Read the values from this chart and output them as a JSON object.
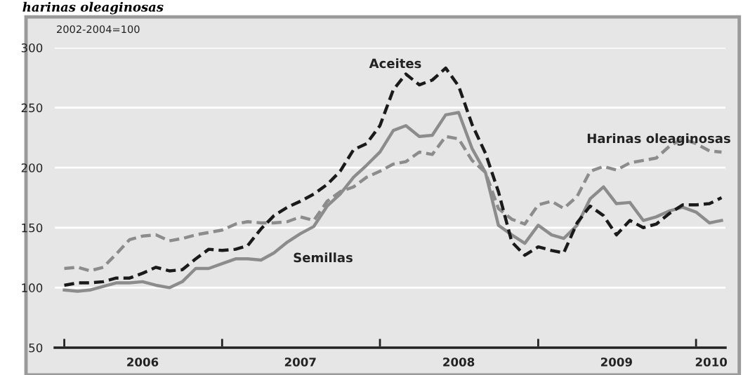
{
  "chart_data": {
    "type": "line",
    "title": "harinas oleaginosas",
    "ylabel": "2002-2004=100",
    "x": [
      "2006-01",
      "2006-02",
      "2006-03",
      "2006-04",
      "2006-05",
      "2006-06",
      "2006-07",
      "2006-08",
      "2006-09",
      "2006-10",
      "2006-11",
      "2006-12",
      "2007-01",
      "2007-02",
      "2007-03",
      "2007-04",
      "2007-05",
      "2007-06",
      "2007-07",
      "2007-08",
      "2007-09",
      "2007-10",
      "2007-11",
      "2007-12",
      "2008-01",
      "2008-02",
      "2008-03",
      "2008-04",
      "2008-05",
      "2008-06",
      "2008-07",
      "2008-08",
      "2008-09",
      "2008-10",
      "2008-11",
      "2008-12",
      "2009-01",
      "2009-02",
      "2009-03",
      "2009-04",
      "2009-05",
      "2009-06",
      "2009-07",
      "2009-08",
      "2009-09",
      "2009-10",
      "2009-11",
      "2009-12",
      "2010-01",
      "2010-02",
      "2010-03"
    ],
    "series": [
      {
        "name": "Aceites",
        "color": "#1a1a1a",
        "line_style": "dashed",
        "values": [
          102,
          104,
          104,
          105,
          108,
          108,
          112,
          117,
          114,
          115,
          124,
          132,
          131,
          132,
          135,
          149,
          160,
          167,
          172,
          178,
          186,
          197,
          215,
          220,
          235,
          265,
          278,
          269,
          273,
          283,
          268,
          236,
          212,
          180,
          138,
          127,
          134,
          131,
          129,
          154,
          168,
          160,
          144,
          156,
          150,
          153,
          162,
          169,
          169,
          170,
          175
        ]
      },
      {
        "name": "Semillas",
        "color": "#8c8c8c",
        "line_style": "solid",
        "values": [
          98,
          97,
          98,
          101,
          104,
          104,
          105,
          102,
          100,
          105,
          116,
          116,
          120,
          124,
          124,
          123,
          129,
          138,
          145,
          151,
          168,
          178,
          192,
          202,
          213,
          231,
          235,
          226,
          227,
          244,
          246,
          216,
          196,
          152,
          144,
          137,
          152,
          144,
          141,
          152,
          174,
          184,
          170,
          171,
          156,
          159,
          164,
          167,
          163,
          154,
          156
        ]
      },
      {
        "name": "Harinas oleaginosas",
        "color": "#8c8c8c",
        "line_style": "dashed",
        "values": [
          116,
          117,
          114,
          117,
          128,
          140,
          143,
          144,
          139,
          141,
          144,
          146,
          148,
          153,
          155,
          154,
          154,
          155,
          159,
          156,
          172,
          180,
          184,
          192,
          197,
          203,
          205,
          213,
          211,
          226,
          224,
          206,
          196,
          166,
          157,
          153,
          169,
          172,
          166,
          176,
          197,
          201,
          198,
          204,
          206,
          208,
          218,
          224,
          220,
          214,
          213
        ]
      }
    ],
    "xlim": [
      "2005-12-10",
      "2010-03-10"
    ],
    "xticks": [
      {
        "value": "2006-01-01",
        "label": null
      },
      {
        "value": "2006-07-01",
        "label": "2006"
      },
      {
        "value": "2007-01-01",
        "label": null
      },
      {
        "value": "2007-07-01",
        "label": "2007"
      },
      {
        "value": "2008-01-01",
        "label": null
      },
      {
        "value": "2008-07-01",
        "label": "2008"
      },
      {
        "value": "2009-01-01",
        "label": null
      },
      {
        "value": "2009-07-01",
        "label": "2009"
      },
      {
        "value": "2010-01-01",
        "label": null
      },
      {
        "value": "2010-02-05",
        "label": "2010"
      }
    ],
    "ylim": [
      50,
      300
    ],
    "yticks": [
      50,
      100,
      150,
      200,
      250,
      300
    ],
    "grid": "y",
    "legend": false
  }
}
